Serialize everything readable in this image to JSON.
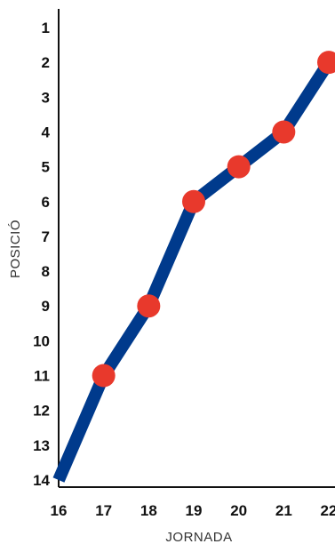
{
  "chart_data": {
    "type": "line",
    "xlabel": "JORNADA",
    "ylabel": "POSICIÓ",
    "x": [
      16,
      17,
      18,
      19,
      20,
      21,
      22
    ],
    "xticks": [
      "16",
      "17",
      "18",
      "19",
      "20",
      "21",
      "22"
    ],
    "yticks": [
      "1",
      "2",
      "3",
      "4",
      "5",
      "6",
      "7",
      "8",
      "9",
      "10",
      "11",
      "12",
      "13",
      "14"
    ],
    "xlim": [
      16,
      22
    ],
    "ylim": [
      1,
      14
    ],
    "y_inverted": true,
    "grid": false,
    "series": [
      {
        "values": [
          14,
          11,
          9,
          6,
          5,
          4,
          2
        ],
        "markers_on": [
          17,
          18,
          19,
          20,
          21,
          22
        ]
      }
    ],
    "colors": {
      "line": "#003a8c",
      "marker": "#e8392c",
      "axis": "#111111"
    }
  }
}
